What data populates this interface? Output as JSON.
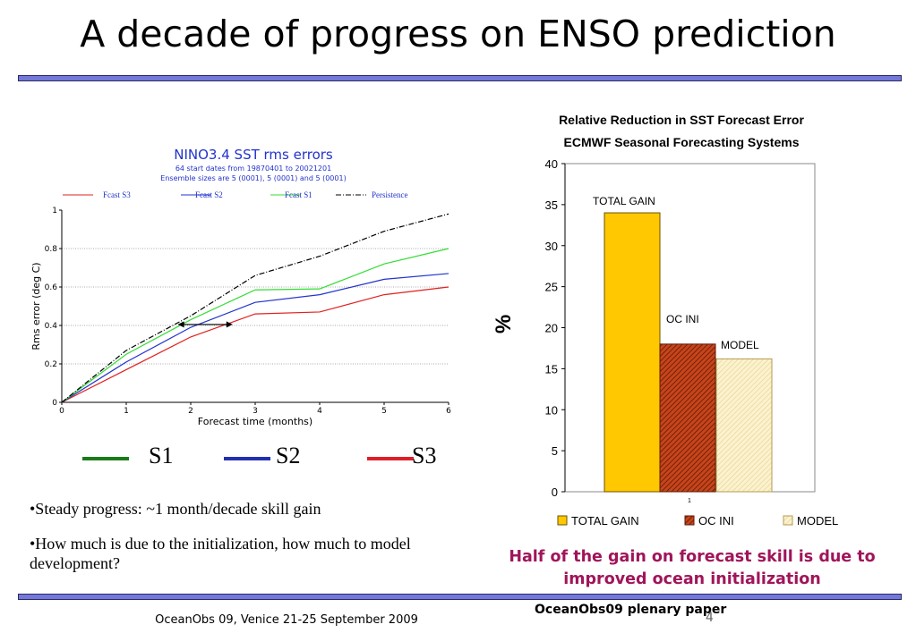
{
  "slide": {
    "title": "A decade of progress on ENSO prediction",
    "footer_left": "OceanObs 09, Venice 21-25 September 2009",
    "footer_right": "OceanObs09 plenary paper",
    "slide_number": "4",
    "bullets": [
      "•Steady progress: ~1 month/decade skill gain",
      "•How much is due to the initialization, how much to model development?"
    ],
    "conclusion": "Half of the gain on forecast skill is due to improved ocean initialization",
    "big_legend": [
      {
        "label": "S1",
        "color": "#1a7a1a"
      },
      {
        "label": "S2",
        "color": "#2230b0"
      },
      {
        "label": "S3",
        "color": "#dd1f2a"
      }
    ]
  },
  "chart_data": [
    {
      "type": "line",
      "title": "NINO3.4 SST rms errors",
      "subtitle_lines": [
        "64 start dates from 19870401 to 20021201",
        "Ensemble sizes are  5 (0001),  5 (0001)  and  5 (0001)"
      ],
      "xlabel": "Forecast time (months)",
      "ylabel": "Rms error (deg C)",
      "xlim": [
        0,
        6
      ],
      "ylim": [
        0,
        1
      ],
      "x_ticks": [
        "0",
        "1",
        "2",
        "3",
        "4",
        "5",
        "6"
      ],
      "y_ticks": [
        "0",
        "0.2",
        "0.4",
        "0.6",
        "0.8",
        "1"
      ],
      "x": [
        0,
        1,
        2,
        3,
        4,
        5,
        6
      ],
      "series": [
        {
          "name": "Fcast S3",
          "color": "#e02020",
          "dash": "",
          "values": [
            0,
            0.17,
            0.34,
            0.46,
            0.47,
            0.56,
            0.6
          ]
        },
        {
          "name": "Fcast S2",
          "color": "#2233cc",
          "dash": "",
          "values": [
            0,
            0.21,
            0.39,
            0.52,
            0.56,
            0.64,
            0.67
          ]
        },
        {
          "name": "Fcast S1",
          "color": "#33dd33",
          "dash": "",
          "values": [
            0,
            0.25,
            0.43,
            0.585,
            0.59,
            0.72,
            0.8
          ]
        },
        {
          "name": "Persistence",
          "color": "#000000",
          "dash": "6,2,1,2",
          "values": [
            0,
            0.27,
            0.45,
            0.66,
            0.76,
            0.89,
            0.98
          ]
        }
      ],
      "annotation": {
        "type": "double-arrow",
        "x_from": 1.8,
        "x_to": 2.65,
        "y": 0.405
      }
    },
    {
      "type": "bar",
      "title_lines": [
        "Relative Reduction in SST Forecast Error",
        "ECMWF Seasonal Forecasting Systems"
      ],
      "ylabel": "%",
      "ylim": [
        0,
        40
      ],
      "y_ticks": [
        "0",
        "5",
        "10",
        "15",
        "20",
        "25",
        "30",
        "35",
        "40"
      ],
      "category_label": "1",
      "series": [
        {
          "name": "TOTAL GAIN",
          "value": 34,
          "color": "#ffc800",
          "pattern": "solid"
        },
        {
          "name": "OC INI",
          "value": 18,
          "color": "#c8441a",
          "pattern": "hatch"
        },
        {
          "name": "MODEL",
          "value": 16.2,
          "color": "#fbeec0",
          "pattern": "light-hatch"
        }
      ],
      "bar_labels": [
        "TOTAL GAIN",
        "OC INI",
        "MODEL"
      ]
    }
  ]
}
